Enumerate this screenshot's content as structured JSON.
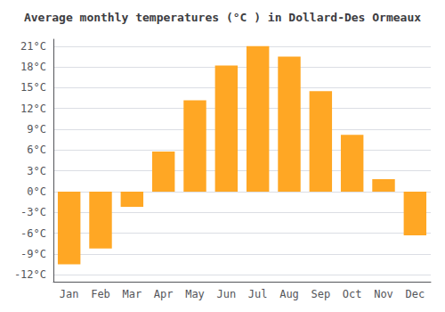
{
  "chart_data": {
    "type": "bar",
    "title": "Average monthly temperatures (°C ) in Dollard-Des Ormeaux",
    "categories": [
      "Jan",
      "Feb",
      "Mar",
      "Apr",
      "May",
      "Jun",
      "Jul",
      "Aug",
      "Sep",
      "Oct",
      "Nov",
      "Dec"
    ],
    "values": [
      -10.5,
      -8.2,
      -2.2,
      5.8,
      13.2,
      18.2,
      21.0,
      19.5,
      14.5,
      8.2,
      1.8,
      -6.3
    ],
    "color": "#FFA724",
    "ylim": [
      -13,
      22
    ],
    "yticks": [
      {
        "value": -12,
        "label": "-12°C"
      },
      {
        "value": -9,
        "label": "-9°C"
      },
      {
        "value": -6,
        "label": "-6°C"
      },
      {
        "value": -3,
        "label": "-3°C"
      },
      {
        "value": 0,
        "label": "0°C"
      },
      {
        "value": 3,
        "label": "3°C"
      },
      {
        "value": 6,
        "label": "6°C"
      },
      {
        "value": 9,
        "label": "9°C"
      },
      {
        "value": 12,
        "label": "12°C"
      },
      {
        "value": 15,
        "label": "15°C"
      },
      {
        "value": 18,
        "label": "18°C"
      },
      {
        "value": 21,
        "label": "21°C"
      }
    ],
    "grid": true
  }
}
